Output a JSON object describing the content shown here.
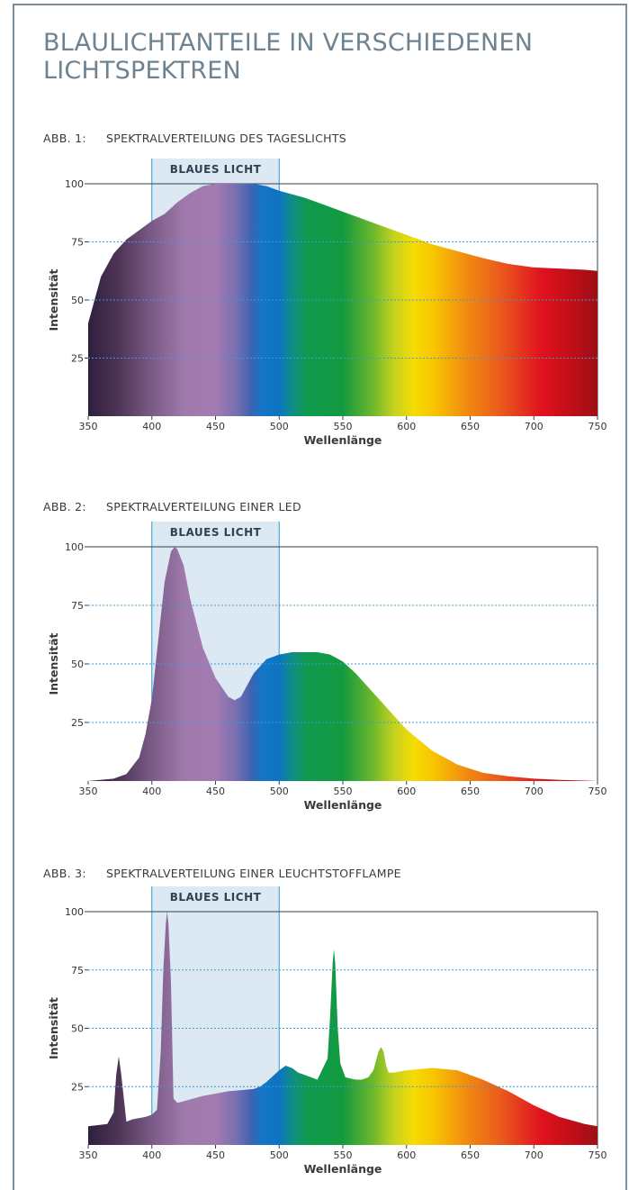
{
  "title": "BLAULICHTANTEILE IN VERSCHIEDENEN LICHTSPEKTREN",
  "chart_data": [
    {
      "type": "area",
      "label": "ABB. 1:",
      "title": "SPEKTRALVERTEILUNG DES TAGESLICHTS",
      "xlabel": "Wellenlänge",
      "ylabel": "Intensität",
      "xlim": [
        350,
        750
      ],
      "ylim": [
        0,
        100
      ],
      "x_ticks": [
        350,
        400,
        450,
        500,
        550,
        600,
        650,
        700,
        750
      ],
      "y_ticks": [
        25,
        50,
        75,
        100
      ],
      "band": {
        "label": "BLAUES LICHT",
        "from": 400,
        "to": 500
      },
      "series": [
        {
          "x": [
            350,
            360,
            370,
            380,
            390,
            400,
            410,
            420,
            430,
            440,
            450,
            460,
            470,
            480,
            490,
            500,
            520,
            540,
            560,
            580,
            600,
            620,
            640,
            660,
            680,
            700,
            720,
            740,
            750
          ],
          "y": [
            40,
            60,
            70,
            76,
            80,
            84,
            87,
            92,
            96,
            99,
            100,
            100,
            100,
            100,
            99,
            97,
            94,
            90,
            86,
            82,
            78,
            74,
            71,
            68,
            65.5,
            64,
            63.5,
            63,
            62.5
          ]
        }
      ]
    },
    {
      "type": "area",
      "label": "ABB. 2:",
      "title": "SPEKTRALVERTEILUNG EINER LED",
      "xlabel": "Wellenlänge",
      "ylabel": "Intensität",
      "xlim": [
        350,
        750
      ],
      "ylim": [
        0,
        100
      ],
      "x_ticks": [
        350,
        400,
        450,
        500,
        550,
        600,
        650,
        700,
        750
      ],
      "y_ticks": [
        25,
        50,
        75,
        100
      ],
      "band": {
        "label": "BLAUES LICHT",
        "from": 400,
        "to": 500
      },
      "series": [
        {
          "x": [
            350,
            370,
            380,
            390,
            395,
            400,
            405,
            410,
            415,
            418,
            420,
            425,
            430,
            440,
            450,
            460,
            465,
            470,
            480,
            490,
            500,
            510,
            520,
            530,
            540,
            550,
            560,
            570,
            580,
            590,
            600,
            620,
            640,
            660,
            680,
            700,
            720,
            740,
            750
          ],
          "y": [
            0,
            1,
            3,
            10,
            20,
            35,
            60,
            85,
            98,
            100,
            99,
            92,
            78,
            57,
            44,
            36,
            34.5,
            36,
            46,
            52,
            54,
            55,
            55,
            55,
            54,
            51,
            46,
            40,
            34,
            28,
            22,
            13,
            7,
            3.5,
            2,
            1,
            0.5,
            0.2,
            0
          ]
        }
      ]
    },
    {
      "type": "area",
      "label": "ABB. 3:",
      "title": "SPEKTRALVERTEILUNG EINER LEUCHTSTOFFLAMPE",
      "xlabel": "Wellenlänge",
      "ylabel": "Intensität",
      "xlim": [
        350,
        750
      ],
      "ylim": [
        0,
        100
      ],
      "x_ticks": [
        350,
        400,
        450,
        500,
        550,
        600,
        650,
        700,
        750
      ],
      "y_ticks": [
        25,
        50,
        75,
        100
      ],
      "band": {
        "label": "BLAUES LICHT",
        "from": 400,
        "to": 500
      },
      "series": [
        {
          "x": [
            350,
            365,
            370,
            372,
            374,
            376,
            380,
            385,
            395,
            400,
            404,
            407,
            409,
            411,
            412,
            413,
            415,
            417,
            420,
            440,
            460,
            480,
            485,
            490,
            500,
            505,
            510,
            515,
            520,
            530,
            538,
            540,
            542,
            543,
            544,
            546,
            548,
            552,
            560,
            565,
            570,
            574,
            576,
            578,
            580,
            582,
            584,
            586,
            590,
            600,
            620,
            640,
            660,
            680,
            700,
            720,
            740,
            750
          ],
          "y": [
            8,
            9,
            14,
            30,
            38,
            30,
            10,
            11,
            12,
            13,
            15,
            40,
            75,
            95,
            100,
            95,
            70,
            20,
            18,
            21,
            23,
            24,
            25,
            27,
            32,
            34,
            33,
            31,
            30,
            28,
            37,
            55,
            78,
            84,
            78,
            50,
            35,
            29,
            28,
            28,
            29,
            32,
            36,
            40,
            42,
            40,
            34,
            31,
            31,
            32,
            33,
            32,
            28,
            23,
            17,
            12,
            9,
            8
          ]
        }
      ]
    }
  ]
}
